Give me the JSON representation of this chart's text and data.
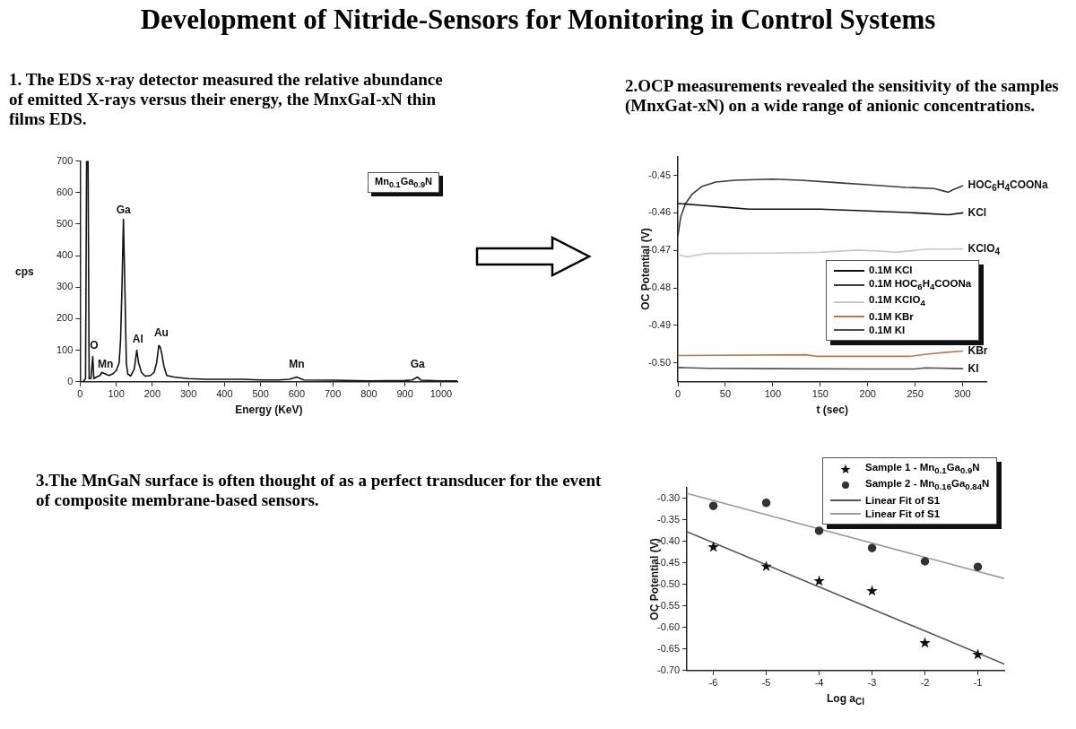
{
  "chart_data": [
    {
      "type": "other",
      "title": "Development of Nitride-Sensors for Monitoring in Control Systems"
    },
    {
      "type": "line",
      "title": "1. The EDS x-ray detector measured the relative abundance of emitted X-rays versus their energy, the MnxGaI-xN thin films EDS.",
      "xlabel": "Energy (KeV)",
      "ylabel": "cps",
      "color": "#111111",
      "marker": "none",
      "x": [
        0,
        8,
        15,
        18,
        22,
        25,
        30,
        35,
        38,
        45,
        55,
        60,
        70,
        80,
        90,
        100,
        108,
        112,
        116,
        120,
        124,
        128,
        132,
        140,
        150,
        157,
        162,
        170,
        180,
        195,
        205,
        212,
        218,
        222,
        226,
        232,
        240,
        260,
        300,
        350,
        400,
        450,
        500,
        550,
        580,
        600,
        620,
        700,
        800,
        900,
        920,
        935,
        945,
        1000,
        1045
      ],
      "values": [
        0,
        0,
        10,
        700,
        700,
        10,
        10,
        80,
        10,
        15,
        20,
        30,
        25,
        20,
        25,
        35,
        60,
        130,
        300,
        515,
        300,
        60,
        25,
        18,
        40,
        100,
        60,
        30,
        18,
        20,
        30,
        60,
        115,
        110,
        90,
        50,
        20,
        15,
        10,
        8,
        8,
        8,
        6,
        6,
        8,
        15,
        6,
        5,
        3,
        4,
        6,
        15,
        5,
        3,
        3
      ],
      "xlim": [
        0,
        1045
      ],
      "ylim": [
        0,
        700
      ],
      "xticks": [
        0,
        100,
        200,
        300,
        400,
        500,
        600,
        700,
        800,
        900,
        1000
      ],
      "yticks": [
        0,
        100,
        200,
        300,
        400,
        500,
        600,
        700
      ],
      "annotations": [
        "Mn$_{0.1}$Ga$_{0.9}$N",
        {
          "text": "O",
          "x": 38,
          "y": 85
        },
        {
          "text": "Mn",
          "x": 70,
          "y": 25
        },
        {
          "text": "Ga",
          "x": 120,
          "y": 515
        },
        {
          "text": "Al",
          "x": 160,
          "y": 105
        },
        {
          "text": "Au",
          "x": 225,
          "y": 125
        },
        {
          "text": "Mn",
          "x": 600,
          "y": 25
        },
        {
          "text": "Ga",
          "x": 935,
          "y": 25
        }
      ]
    },
    {
      "type": "line",
      "title": "2.OCP measurements revealed the sensitivity of the samples (MnxGat-xN) on a wide range of anionic concentrations.",
      "xlabel": "t (sec)",
      "ylabel": "OC Potential (V)",
      "marker": "none",
      "legend": "right",
      "xlim": [
        0,
        325
      ],
      "ylim": [
        -0.505,
        -0.445
      ],
      "xticks": [
        0,
        50,
        100,
        150,
        200,
        250,
        300
      ],
      "yticks": [
        -0.45,
        -0.46,
        -0.47,
        -0.48,
        -0.49,
        {
          "value": -0.5,
          "label": "-0.50"
        }
      ],
      "series": [
        {
          "name": "0.1M KCl",
          "color": "#111111",
          "x": [
            0,
            25,
            50,
            75,
            100,
            150,
            200,
            250,
            285,
            300
          ],
          "values": [
            -0.4575,
            -0.458,
            -0.4585,
            -0.459,
            -0.459,
            -0.459,
            -0.4595,
            -0.46,
            -0.4605,
            -0.46
          ]
        },
        {
          "name": "0.1M HOC$_{6}$H$_{4}$COONa",
          "color": "#3a3a3a",
          "x": [
            0,
            3,
            8,
            15,
            25,
            40,
            60,
            100,
            130,
            170,
            200,
            240,
            270,
            285,
            290,
            300
          ],
          "values": [
            -0.466,
            -0.461,
            -0.4575,
            -0.455,
            -0.453,
            -0.4518,
            -0.4513,
            -0.451,
            -0.4513,
            -0.452,
            -0.4525,
            -0.4532,
            -0.4535,
            -0.4545,
            -0.4538,
            -0.4528
          ]
        },
        {
          "name": "0.1M KClO$_{4}$",
          "color": "#c8c8c8",
          "x": [
            0,
            10,
            30,
            100,
            150,
            190,
            220,
            230,
            260,
            300
          ],
          "values": [
            -0.4712,
            -0.4717,
            -0.4708,
            -0.4707,
            -0.4705,
            -0.4699,
            -0.4703,
            -0.4705,
            -0.4697,
            -0.4696
          ]
        },
        {
          "name": "0.1M KBr",
          "color": "#b87850",
          "x": [
            0,
            135,
            145,
            245,
            260,
            280,
            300
          ],
          "values": [
            -0.498,
            -0.4978,
            -0.4982,
            -0.4982,
            -0.4977,
            -0.4972,
            -0.4968
          ]
        },
        {
          "name": "0.1M KI",
          "color": "#505050",
          "x": [
            0,
            30,
            100,
            200,
            250,
            260,
            300
          ],
          "values": [
            -0.5012,
            -0.5014,
            -0.5015,
            -0.5016,
            -0.5016,
            -0.5013,
            -0.5015
          ]
        }
      ],
      "annotations": [
        {
          "text": "HOC$_{6}$H$_{4}$COONa",
          "x": 300,
          "y": -0.4528
        },
        {
          "text": "KCl",
          "x": 300,
          "y": -0.46
        },
        {
          "text": "KClO$_{4}$",
          "x": 300,
          "y": -0.4696
        },
        {
          "text": "KBr",
          "x": 300,
          "y": -0.4968
        },
        {
          "text": "KI",
          "x": 300,
          "y": -0.5015
        }
      ]
    },
    {
      "type": "scatter",
      "title": "3.The MnGaN surface is often thought of as a perfect transducer for the event of composite membrane-based sensors.",
      "xlabel": "Log a$_{Cl}$",
      "ylabel": "OC Potential (V)",
      "legend": "top right",
      "xlim": [
        -6.5,
        -0.5
      ],
      "ylim": [
        -0.7,
        -0.275
      ],
      "xticks": [
        -6,
        -5,
        -4,
        -3,
        -2,
        -1
      ],
      "yticks": [
        {
          "value": -0.3,
          "label": "-0.30"
        },
        -0.35,
        {
          "value": -0.4,
          "label": "-0.40"
        },
        -0.45,
        {
          "value": -0.5,
          "label": "-0.50"
        },
        -0.55,
        {
          "value": -0.6,
          "label": "-0.60"
        },
        -0.65,
        {
          "value": -0.7,
          "label": "-0.70"
        }
      ],
      "x": [
        -6,
        -5,
        -4,
        -3,
        -2,
        -1
      ],
      "series": [
        {
          "name": "Sample 1 - Mn$_{0.1}$Ga$_{0.9}$N",
          "type": "scatter",
          "marker": "star",
          "color": "#111111",
          "values": [
            -0.413,
            -0.458,
            -0.492,
            -0.515,
            -0.636,
            -0.663
          ]
        },
        {
          "name": "Sample 2 - Mn$_{0.16}$Ga$_{0.84}$N",
          "type": "scatter",
          "marker": "circle",
          "color": "#333333",
          "values": [
            -0.317,
            -0.31,
            -0.375,
            -0.415,
            -0.446,
            -0.459
          ]
        },
        {
          "name": "Linear Fit of S1",
          "type": "line",
          "marker": "none",
          "color": "#555555",
          "x": [
            -6.5,
            -0.5
          ],
          "values": [
            -0.377,
            -0.685
          ]
        },
        {
          "name": "Linear Fit of S1",
          "type": "line",
          "marker": "none",
          "color": "#9a9a9a",
          "x": [
            -6.5,
            -0.5
          ],
          "values": [
            -0.288,
            -0.486
          ]
        }
      ]
    }
  ]
}
